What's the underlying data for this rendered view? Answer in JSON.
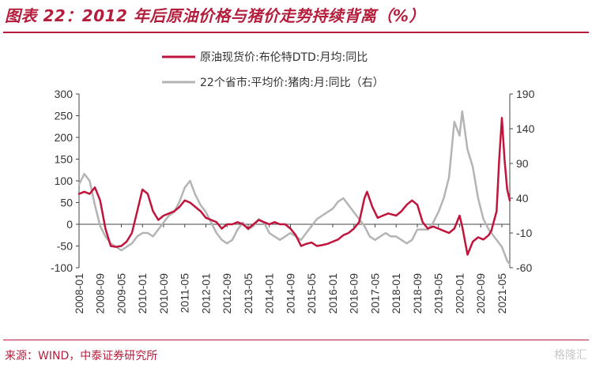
{
  "header": {
    "title": "图表 22：2012 年后原油价格与猪价走势持续背离（%）"
  },
  "footer": {
    "source": "来源：WIND，中泰证券研究所",
    "watermark": "格隆汇"
  },
  "chart_data": {
    "type": "line",
    "title": "图表 22：2012 年后原油价格与猪价走势持续背离（%）",
    "xlabel": "",
    "ylabel": "",
    "ylim": [
      -100,
      300
    ],
    "y2lim": [
      -60,
      190
    ],
    "yticks": [
      300,
      250,
      200,
      150,
      100,
      50,
      0,
      -50,
      -100
    ],
    "y2ticks": [
      190,
      140,
      90,
      40,
      -10,
      -60
    ],
    "x_start": "2008-01",
    "x_end": "2021-08",
    "xticks": [
      "2008-01",
      "2008-09",
      "2009-05",
      "2010-01",
      "2010-09",
      "2011-05",
      "2012-01",
      "2012-09",
      "2013-05",
      "2014-01",
      "2014-09",
      "2015-05",
      "2016-01",
      "2016-09",
      "2017-05",
      "2018-01",
      "2018-09",
      "2019-05",
      "2020-01",
      "2020-09",
      "2021-05"
    ],
    "legend_position": "top",
    "grid": false,
    "series": [
      {
        "name": "原油现货价:布伦特DTD:月均:同比",
        "axis": "left",
        "color": "#c0143c",
        "points": [
          [
            "2008-01",
            70
          ],
          [
            "2008-03",
            75
          ],
          [
            "2008-05",
            70
          ],
          [
            "2008-07",
            85
          ],
          [
            "2008-09",
            55
          ],
          [
            "2008-11",
            -10
          ],
          [
            "2009-01",
            -50
          ],
          [
            "2009-03",
            -52
          ],
          [
            "2009-05",
            -50
          ],
          [
            "2009-07",
            -40
          ],
          [
            "2009-09",
            -20
          ],
          [
            "2009-11",
            30
          ],
          [
            "2010-01",
            80
          ],
          [
            "2010-03",
            70
          ],
          [
            "2010-05",
            30
          ],
          [
            "2010-07",
            10
          ],
          [
            "2010-09",
            20
          ],
          [
            "2010-11",
            25
          ],
          [
            "2011-01",
            30
          ],
          [
            "2011-03",
            40
          ],
          [
            "2011-05",
            55
          ],
          [
            "2011-07",
            50
          ],
          [
            "2011-09",
            40
          ],
          [
            "2011-11",
            30
          ],
          [
            "2012-01",
            15
          ],
          [
            "2012-03",
            10
          ],
          [
            "2012-05",
            5
          ],
          [
            "2012-07",
            -10
          ],
          [
            "2012-09",
            0
          ],
          [
            "2012-11",
            0
          ],
          [
            "2013-01",
            5
          ],
          [
            "2013-03",
            0
          ],
          [
            "2013-05",
            -10
          ],
          [
            "2013-07",
            0
          ],
          [
            "2013-09",
            10
          ],
          [
            "2013-11",
            5
          ],
          [
            "2014-01",
            0
          ],
          [
            "2014-03",
            5
          ],
          [
            "2014-05",
            0
          ],
          [
            "2014-07",
            0
          ],
          [
            "2014-09",
            -10
          ],
          [
            "2014-11",
            -25
          ],
          [
            "2015-01",
            -50
          ],
          [
            "2015-03",
            -45
          ],
          [
            "2015-05",
            -42
          ],
          [
            "2015-07",
            -50
          ],
          [
            "2015-09",
            -48
          ],
          [
            "2015-11",
            -45
          ],
          [
            "2016-01",
            -40
          ],
          [
            "2016-03",
            -35
          ],
          [
            "2016-05",
            -25
          ],
          [
            "2016-07",
            -20
          ],
          [
            "2016-09",
            -10
          ],
          [
            "2016-11",
            5
          ],
          [
            "2017-01",
            60
          ],
          [
            "2017-02",
            75
          ],
          [
            "2017-04",
            40
          ],
          [
            "2017-06",
            15
          ],
          [
            "2017-08",
            20
          ],
          [
            "2017-10",
            25
          ],
          [
            "2018-01",
            20
          ],
          [
            "2018-03",
            30
          ],
          [
            "2018-05",
            45
          ],
          [
            "2018-07",
            55
          ],
          [
            "2018-09",
            45
          ],
          [
            "2018-11",
            5
          ],
          [
            "2019-01",
            -10
          ],
          [
            "2019-03",
            -5
          ],
          [
            "2019-05",
            -10
          ],
          [
            "2019-07",
            -15
          ],
          [
            "2019-09",
            -20
          ],
          [
            "2019-11",
            -10
          ],
          [
            "2020-01",
            20
          ],
          [
            "2020-02",
            -5
          ],
          [
            "2020-04",
            -70
          ],
          [
            "2020-06",
            -40
          ],
          [
            "2020-08",
            -30
          ],
          [
            "2020-10",
            -35
          ],
          [
            "2020-12",
            -25
          ],
          [
            "2021-01",
            -15
          ],
          [
            "2021-03",
            30
          ],
          [
            "2021-04",
            150
          ],
          [
            "2021-05",
            245
          ],
          [
            "2021-06",
            150
          ],
          [
            "2021-07",
            80
          ],
          [
            "2021-08",
            55
          ]
        ]
      },
      {
        "name": "22个省市:平均价:猪肉:月:同比（右）",
        "axis": "right",
        "color": "#b4b4b4",
        "points": [
          [
            "2008-01",
            60
          ],
          [
            "2008-03",
            75
          ],
          [
            "2008-05",
            65
          ],
          [
            "2008-07",
            30
          ],
          [
            "2008-09",
            0
          ],
          [
            "2008-11",
            -15
          ],
          [
            "2009-01",
            -25
          ],
          [
            "2009-03",
            -30
          ],
          [
            "2009-05",
            -35
          ],
          [
            "2009-07",
            -30
          ],
          [
            "2009-09",
            -25
          ],
          [
            "2009-11",
            -15
          ],
          [
            "2010-01",
            -10
          ],
          [
            "2010-03",
            -10
          ],
          [
            "2010-05",
            -15
          ],
          [
            "2010-07",
            -5
          ],
          [
            "2010-09",
            5
          ],
          [
            "2010-11",
            15
          ],
          [
            "2011-01",
            20
          ],
          [
            "2011-03",
            35
          ],
          [
            "2011-05",
            55
          ],
          [
            "2011-07",
            65
          ],
          [
            "2011-09",
            45
          ],
          [
            "2011-11",
            30
          ],
          [
            "2012-01",
            20
          ],
          [
            "2012-03",
            5
          ],
          [
            "2012-05",
            -10
          ],
          [
            "2012-07",
            -20
          ],
          [
            "2012-09",
            -25
          ],
          [
            "2012-11",
            -20
          ],
          [
            "2013-01",
            -5
          ],
          [
            "2013-03",
            5
          ],
          [
            "2013-05",
            -5
          ],
          [
            "2013-07",
            0
          ],
          [
            "2013-09",
            10
          ],
          [
            "2013-11",
            5
          ],
          [
            "2014-01",
            -10
          ],
          [
            "2014-03",
            -15
          ],
          [
            "2014-05",
            -20
          ],
          [
            "2014-07",
            -15
          ],
          [
            "2014-09",
            -10
          ],
          [
            "2014-11",
            -15
          ],
          [
            "2015-01",
            -20
          ],
          [
            "2015-03",
            -10
          ],
          [
            "2015-05",
            0
          ],
          [
            "2015-07",
            10
          ],
          [
            "2015-09",
            15
          ],
          [
            "2015-11",
            20
          ],
          [
            "2016-01",
            25
          ],
          [
            "2016-03",
            35
          ],
          [
            "2016-05",
            40
          ],
          [
            "2016-07",
            30
          ],
          [
            "2016-09",
            20
          ],
          [
            "2016-11",
            10
          ],
          [
            "2017-01",
            0
          ],
          [
            "2017-03",
            -15
          ],
          [
            "2017-05",
            -20
          ],
          [
            "2017-07",
            -15
          ],
          [
            "2017-09",
            -10
          ],
          [
            "2017-11",
            -15
          ],
          [
            "2018-01",
            -15
          ],
          [
            "2018-03",
            -20
          ],
          [
            "2018-05",
            -25
          ],
          [
            "2018-07",
            -20
          ],
          [
            "2018-09",
            -5
          ],
          [
            "2018-11",
            -5
          ],
          [
            "2019-01",
            -5
          ],
          [
            "2019-03",
            5
          ],
          [
            "2019-05",
            20
          ],
          [
            "2019-07",
            40
          ],
          [
            "2019-09",
            70
          ],
          [
            "2019-11",
            150
          ],
          [
            "2020-01",
            130
          ],
          [
            "2020-02",
            165
          ],
          [
            "2020-04",
            110
          ],
          [
            "2020-06",
            85
          ],
          [
            "2020-08",
            40
          ],
          [
            "2020-10",
            10
          ],
          [
            "2020-12",
            -5
          ],
          [
            "2021-01",
            -10
          ],
          [
            "2021-03",
            -20
          ],
          [
            "2021-05",
            -30
          ],
          [
            "2021-07",
            -50
          ],
          [
            "2021-08",
            -55
          ]
        ]
      }
    ]
  }
}
